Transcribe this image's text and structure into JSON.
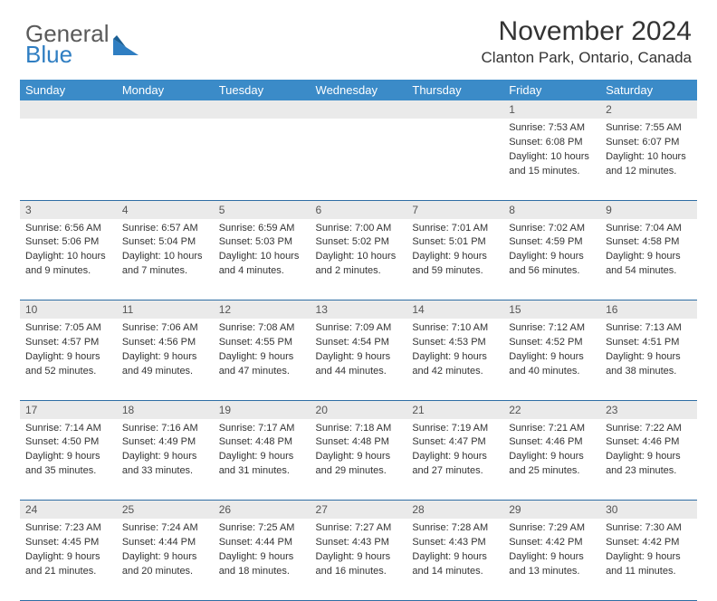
{
  "brand": {
    "word1": "General",
    "word2": "Blue",
    "text_color": "#5a5a5a",
    "blue_color": "#2f7ec2"
  },
  "title": "November 2024",
  "location": "Clanton Park, Ontario, Canada",
  "colors": {
    "header_bg": "#3b8bc8",
    "header_text": "#ffffff",
    "daynum_bg": "#eaeaea",
    "border": "#2e6da4",
    "body_text": "#333333"
  },
  "weekdays": [
    "Sunday",
    "Monday",
    "Tuesday",
    "Wednesday",
    "Thursday",
    "Friday",
    "Saturday"
  ],
  "weeks": [
    {
      "nums": [
        "",
        "",
        "",
        "",
        "",
        "1",
        "2"
      ],
      "cells": [
        null,
        null,
        null,
        null,
        null,
        {
          "sunrise": "Sunrise: 7:53 AM",
          "sunset": "Sunset: 6:08 PM",
          "day1": "Daylight: 10 hours",
          "day2": "and 15 minutes."
        },
        {
          "sunrise": "Sunrise: 7:55 AM",
          "sunset": "Sunset: 6:07 PM",
          "day1": "Daylight: 10 hours",
          "day2": "and 12 minutes."
        }
      ]
    },
    {
      "nums": [
        "3",
        "4",
        "5",
        "6",
        "7",
        "8",
        "9"
      ],
      "cells": [
        {
          "sunrise": "Sunrise: 6:56 AM",
          "sunset": "Sunset: 5:06 PM",
          "day1": "Daylight: 10 hours",
          "day2": "and 9 minutes."
        },
        {
          "sunrise": "Sunrise: 6:57 AM",
          "sunset": "Sunset: 5:04 PM",
          "day1": "Daylight: 10 hours",
          "day2": "and 7 minutes."
        },
        {
          "sunrise": "Sunrise: 6:59 AM",
          "sunset": "Sunset: 5:03 PM",
          "day1": "Daylight: 10 hours",
          "day2": "and 4 minutes."
        },
        {
          "sunrise": "Sunrise: 7:00 AM",
          "sunset": "Sunset: 5:02 PM",
          "day1": "Daylight: 10 hours",
          "day2": "and 2 minutes."
        },
        {
          "sunrise": "Sunrise: 7:01 AM",
          "sunset": "Sunset: 5:01 PM",
          "day1": "Daylight: 9 hours",
          "day2": "and 59 minutes."
        },
        {
          "sunrise": "Sunrise: 7:02 AM",
          "sunset": "Sunset: 4:59 PM",
          "day1": "Daylight: 9 hours",
          "day2": "and 56 minutes."
        },
        {
          "sunrise": "Sunrise: 7:04 AM",
          "sunset": "Sunset: 4:58 PM",
          "day1": "Daylight: 9 hours",
          "day2": "and 54 minutes."
        }
      ]
    },
    {
      "nums": [
        "10",
        "11",
        "12",
        "13",
        "14",
        "15",
        "16"
      ],
      "cells": [
        {
          "sunrise": "Sunrise: 7:05 AM",
          "sunset": "Sunset: 4:57 PM",
          "day1": "Daylight: 9 hours",
          "day2": "and 52 minutes."
        },
        {
          "sunrise": "Sunrise: 7:06 AM",
          "sunset": "Sunset: 4:56 PM",
          "day1": "Daylight: 9 hours",
          "day2": "and 49 minutes."
        },
        {
          "sunrise": "Sunrise: 7:08 AM",
          "sunset": "Sunset: 4:55 PM",
          "day1": "Daylight: 9 hours",
          "day2": "and 47 minutes."
        },
        {
          "sunrise": "Sunrise: 7:09 AM",
          "sunset": "Sunset: 4:54 PM",
          "day1": "Daylight: 9 hours",
          "day2": "and 44 minutes."
        },
        {
          "sunrise": "Sunrise: 7:10 AM",
          "sunset": "Sunset: 4:53 PM",
          "day1": "Daylight: 9 hours",
          "day2": "and 42 minutes."
        },
        {
          "sunrise": "Sunrise: 7:12 AM",
          "sunset": "Sunset: 4:52 PM",
          "day1": "Daylight: 9 hours",
          "day2": "and 40 minutes."
        },
        {
          "sunrise": "Sunrise: 7:13 AM",
          "sunset": "Sunset: 4:51 PM",
          "day1": "Daylight: 9 hours",
          "day2": "and 38 minutes."
        }
      ]
    },
    {
      "nums": [
        "17",
        "18",
        "19",
        "20",
        "21",
        "22",
        "23"
      ],
      "cells": [
        {
          "sunrise": "Sunrise: 7:14 AM",
          "sunset": "Sunset: 4:50 PM",
          "day1": "Daylight: 9 hours",
          "day2": "and 35 minutes."
        },
        {
          "sunrise": "Sunrise: 7:16 AM",
          "sunset": "Sunset: 4:49 PM",
          "day1": "Daylight: 9 hours",
          "day2": "and 33 minutes."
        },
        {
          "sunrise": "Sunrise: 7:17 AM",
          "sunset": "Sunset: 4:48 PM",
          "day1": "Daylight: 9 hours",
          "day2": "and 31 minutes."
        },
        {
          "sunrise": "Sunrise: 7:18 AM",
          "sunset": "Sunset: 4:48 PM",
          "day1": "Daylight: 9 hours",
          "day2": "and 29 minutes."
        },
        {
          "sunrise": "Sunrise: 7:19 AM",
          "sunset": "Sunset: 4:47 PM",
          "day1": "Daylight: 9 hours",
          "day2": "and 27 minutes."
        },
        {
          "sunrise": "Sunrise: 7:21 AM",
          "sunset": "Sunset: 4:46 PM",
          "day1": "Daylight: 9 hours",
          "day2": "and 25 minutes."
        },
        {
          "sunrise": "Sunrise: 7:22 AM",
          "sunset": "Sunset: 4:46 PM",
          "day1": "Daylight: 9 hours",
          "day2": "and 23 minutes."
        }
      ]
    },
    {
      "nums": [
        "24",
        "25",
        "26",
        "27",
        "28",
        "29",
        "30"
      ],
      "cells": [
        {
          "sunrise": "Sunrise: 7:23 AM",
          "sunset": "Sunset: 4:45 PM",
          "day1": "Daylight: 9 hours",
          "day2": "and 21 minutes."
        },
        {
          "sunrise": "Sunrise: 7:24 AM",
          "sunset": "Sunset: 4:44 PM",
          "day1": "Daylight: 9 hours",
          "day2": "and 20 minutes."
        },
        {
          "sunrise": "Sunrise: 7:25 AM",
          "sunset": "Sunset: 4:44 PM",
          "day1": "Daylight: 9 hours",
          "day2": "and 18 minutes."
        },
        {
          "sunrise": "Sunrise: 7:27 AM",
          "sunset": "Sunset: 4:43 PM",
          "day1": "Daylight: 9 hours",
          "day2": "and 16 minutes."
        },
        {
          "sunrise": "Sunrise: 7:28 AM",
          "sunset": "Sunset: 4:43 PM",
          "day1": "Daylight: 9 hours",
          "day2": "and 14 minutes."
        },
        {
          "sunrise": "Sunrise: 7:29 AM",
          "sunset": "Sunset: 4:42 PM",
          "day1": "Daylight: 9 hours",
          "day2": "and 13 minutes."
        },
        {
          "sunrise": "Sunrise: 7:30 AM",
          "sunset": "Sunset: 4:42 PM",
          "day1": "Daylight: 9 hours",
          "day2": "and 11 minutes."
        }
      ]
    }
  ]
}
